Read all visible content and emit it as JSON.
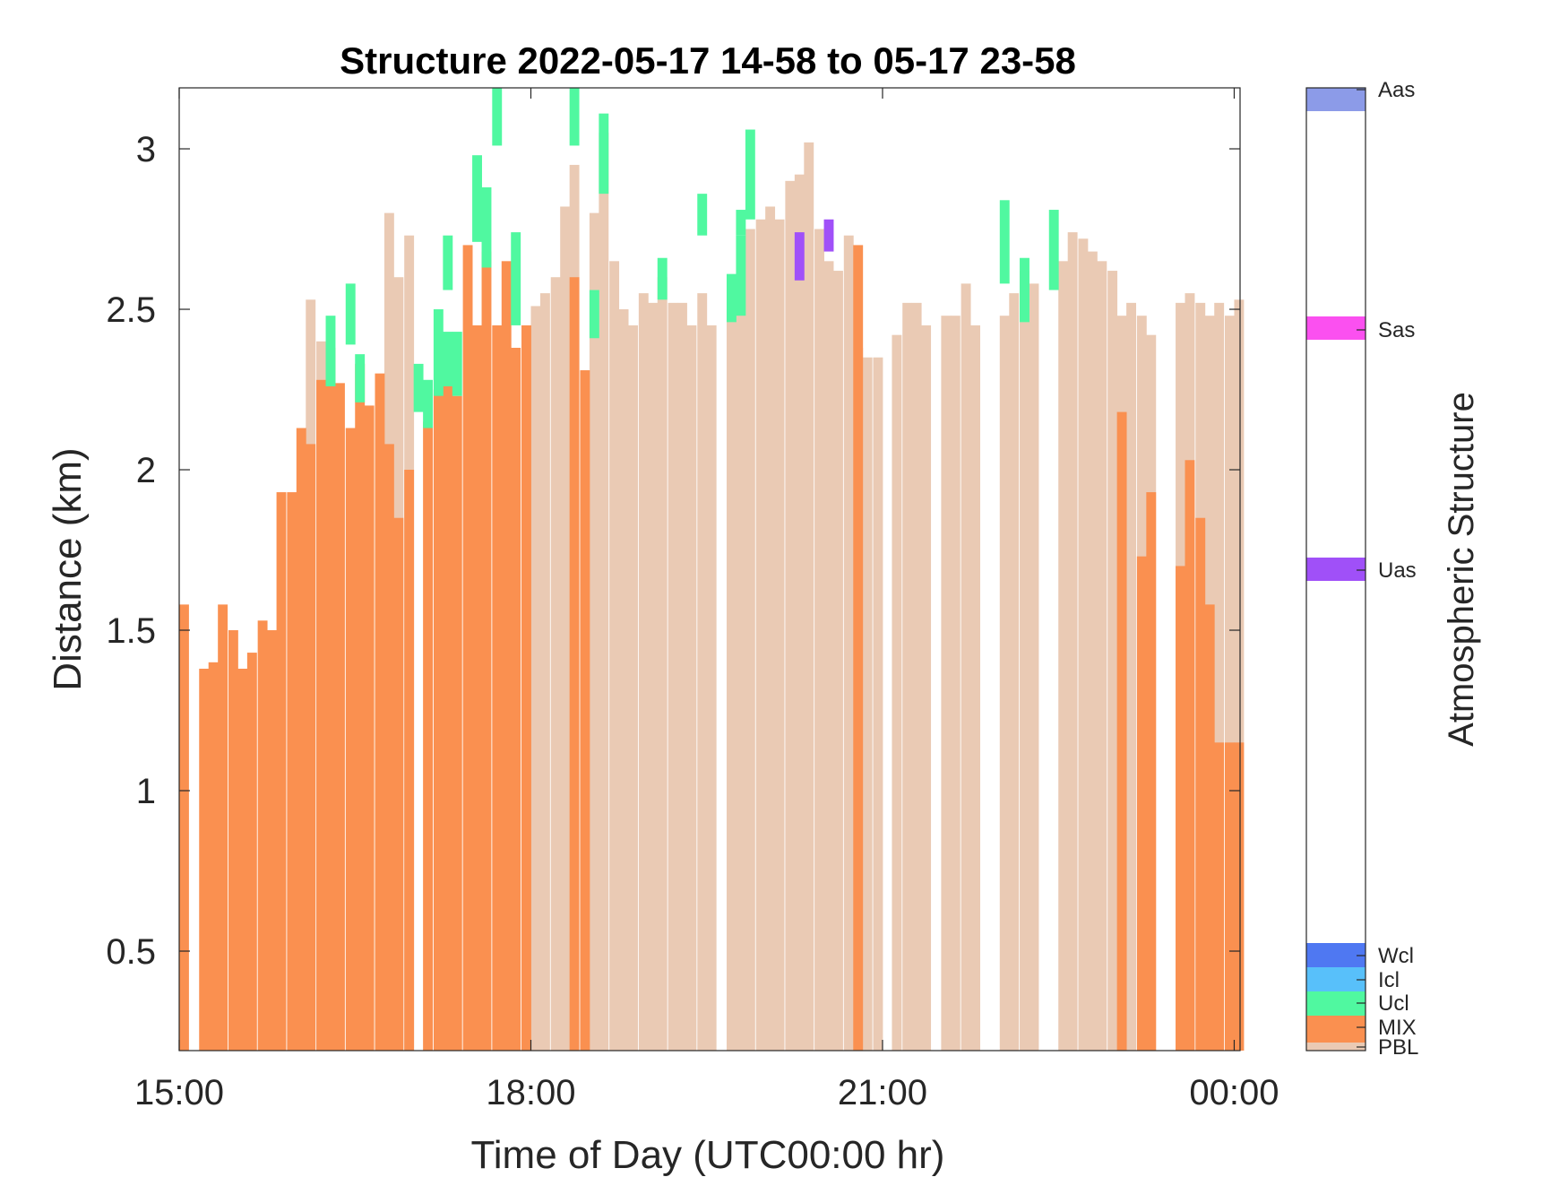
{
  "chart_data": {
    "type": "bar",
    "title": "Structure 2022-05-17 14-58 to 05-17 23-58",
    "xlabel": "Time of Day (UTC00:00 hr)",
    "ylabel": "Distance (km)",
    "colorbar_label": "Atmospheric Structure",
    "xlim": [
      15.0,
      24.05
    ],
    "ylim": [
      0.19,
      3.19
    ],
    "x_ticks": [
      {
        "value": 15,
        "label": "15:00"
      },
      {
        "value": 18,
        "label": "18:00"
      },
      {
        "value": 21,
        "label": "21:00"
      },
      {
        "value": 24,
        "label": "00:00"
      }
    ],
    "y_ticks": [
      {
        "value": 0.5,
        "label": "0.5"
      },
      {
        "value": 1,
        "label": "1"
      },
      {
        "value": 1.5,
        "label": "1.5"
      },
      {
        "value": 2,
        "label": "2"
      },
      {
        "value": 2.5,
        "label": "2.5"
      },
      {
        "value": 3,
        "label": "3"
      }
    ],
    "categories": [
      {
        "name": "Aas",
        "color": "#8c9be8"
      },
      {
        "name": "Sas",
        "color": "#fb50f0"
      },
      {
        "name": "Uas",
        "color": "#a050f8"
      },
      {
        "name": "Wcl",
        "color": "#4f78f2"
      },
      {
        "name": "Icl",
        "color": "#58c0fa"
      },
      {
        "name": "Ucl",
        "color": "#50f8a0"
      },
      {
        "name": "MIX",
        "color": "#fa9050"
      },
      {
        "name": "PBL",
        "color": "#eacab4"
      }
    ],
    "series": [
      {
        "name": "PBL",
        "bin_width": 0.0833,
        "x": [
          18.0,
          18.08,
          18.17,
          18.25,
          18.33,
          18.5,
          18.58,
          18.67,
          18.75,
          18.83,
          18.92,
          19.0,
          19.08,
          19.17,
          19.25,
          19.33,
          19.42,
          19.5,
          19.67,
          19.75,
          19.83,
          19.92,
          20.0,
          20.08,
          20.17,
          20.25,
          20.33,
          20.42,
          20.5,
          20.58,
          20.67,
          20.75,
          20.83,
          20.92,
          21.08,
          21.17,
          21.25,
          21.33,
          21.5,
          21.58,
          21.67,
          21.75,
          22.0,
          22.08,
          22.17,
          22.25,
          22.5,
          22.58,
          22.67,
          22.75,
          22.83,
          22.92,
          23.0,
          23.08,
          23.17,
          23.25,
          23.5,
          23.58,
          23.67,
          23.75,
          23.83,
          23.92,
          24.0
        ],
        "values": [
          2.51,
          2.55,
          2.6,
          2.82,
          2.95,
          2.8,
          3.05,
          2.65,
          2.5,
          2.45,
          2.55,
          2.52,
          2.6,
          2.52,
          2.52,
          2.45,
          2.55,
          2.45,
          2.5,
          2.6,
          2.75,
          2.78,
          2.82,
          2.78,
          2.9,
          2.92,
          3.02,
          2.75,
          2.65,
          2.62,
          2.73,
          2.38,
          2.35,
          2.35,
          2.42,
          2.52,
          2.52,
          2.45,
          2.48,
          2.48,
          2.58,
          2.45,
          2.48,
          2.55,
          2.62,
          2.58,
          2.65,
          2.74,
          2.72,
          2.68,
          2.65,
          2.62,
          2.48,
          2.52,
          2.48,
          2.42,
          2.52,
          2.55,
          2.52,
          2.48,
          2.52,
          2.48,
          2.53
        ]
      },
      {
        "name": "PBL",
        "bin_width": 0.0833,
        "x": [
          16.08,
          16.17,
          16.75,
          16.83,
          16.92
        ],
        "values": [
          2.53,
          2.4,
          2.8,
          2.6,
          2.73
        ]
      },
      {
        "name": "MIX",
        "bin_width": 0.0833,
        "x": [
          15.0,
          15.17,
          15.25,
          15.33,
          15.42,
          15.5,
          15.58,
          15.67,
          15.75,
          15.83,
          15.92,
          16.0,
          16.08,
          16.17,
          16.25,
          16.33,
          16.42,
          16.5,
          16.58,
          16.67,
          16.75,
          16.83,
          16.92,
          17.08,
          17.17,
          17.25,
          17.33,
          17.42,
          17.5,
          17.58,
          17.67,
          17.75,
          17.83,
          17.92,
          18.33,
          18.42,
          20.75,
          23.0,
          23.17,
          23.25,
          23.5,
          23.58,
          23.67,
          23.75,
          23.83,
          23.92,
          24.0
        ],
        "values": [
          1.58,
          1.38,
          1.4,
          1.58,
          1.5,
          1.38,
          1.43,
          1.53,
          1.5,
          1.93,
          1.93,
          2.13,
          2.08,
          2.28,
          2.38,
          2.27,
          2.13,
          2.33,
          2.2,
          2.3,
          2.08,
          1.85,
          2.0,
          2.15,
          2.25,
          2.35,
          2.23,
          2.7,
          2.45,
          2.68,
          2.45,
          2.65,
          2.38,
          2.45,
          2.6,
          2.31,
          2.7,
          2.18,
          1.73,
          1.93,
          1.7,
          2.03,
          1.85,
          1.58,
          1.15,
          1.15,
          1.15
        ]
      },
      {
        "name": "Ucl",
        "bin_width": 0.0833,
        "segments": [
          [
            16.25,
            2.26,
            2.48
          ],
          [
            16.42,
            2.39,
            2.58
          ],
          [
            16.5,
            2.21,
            2.36
          ],
          [
            17.0,
            2.18,
            2.33
          ],
          [
            17.08,
            2.13,
            2.28
          ],
          [
            17.17,
            2.23,
            2.5
          ],
          [
            17.25,
            2.26,
            2.43
          ],
          [
            17.33,
            2.23,
            2.43
          ],
          [
            17.25,
            2.56,
            2.73
          ],
          [
            17.5,
            2.71,
            2.98
          ],
          [
            17.58,
            2.63,
            2.88
          ],
          [
            17.67,
            3.01,
            3.19
          ],
          [
            17.83,
            2.45,
            2.74
          ],
          [
            18.33,
            3.01,
            3.19
          ],
          [
            18.5,
            2.41,
            2.56
          ],
          [
            18.58,
            2.86,
            3.11
          ],
          [
            19.08,
            2.53,
            2.66
          ],
          [
            19.42,
            2.73,
            2.86
          ],
          [
            19.67,
            2.46,
            2.61
          ],
          [
            19.75,
            2.48,
            2.73
          ],
          [
            19.83,
            2.78,
            3.06
          ],
          [
            19.75,
            2.73,
            2.81
          ],
          [
            22.0,
            2.58,
            2.84
          ],
          [
            22.17,
            2.46,
            2.66
          ],
          [
            22.42,
            2.56,
            2.81
          ]
        ]
      },
      {
        "name": "Uas",
        "bin_width": 0.0833,
        "segments": [
          [
            20.25,
            2.59,
            2.74
          ],
          [
            20.5,
            2.68,
            2.78
          ]
        ]
      }
    ]
  }
}
